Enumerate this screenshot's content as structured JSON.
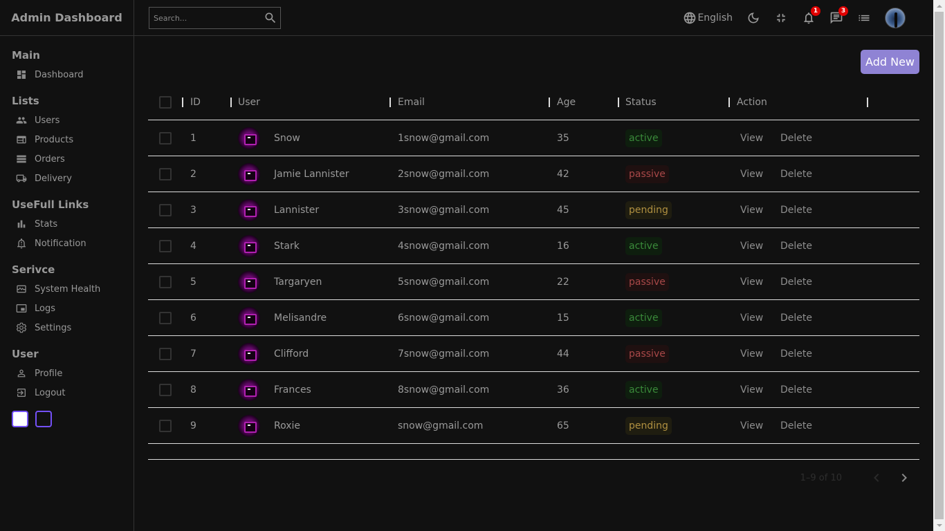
{
  "brand": {
    "title": "Admin Dashboard"
  },
  "search": {
    "placeholder": "Search...",
    "icon": "search-icon"
  },
  "topbar": {
    "language": "English",
    "notifications_count": "1",
    "messages_count": "3"
  },
  "sidebar": {
    "sections": [
      {
        "title": "Main",
        "items": [
          {
            "label": "Dashboard",
            "icon": "dashboard-icon"
          }
        ]
      },
      {
        "title": "Lists",
        "items": [
          {
            "label": "Users",
            "icon": "users-icon"
          },
          {
            "label": "Products",
            "icon": "products-icon"
          },
          {
            "label": "Orders",
            "icon": "orders-icon"
          },
          {
            "label": "Delivery",
            "icon": "truck-icon"
          }
        ]
      },
      {
        "title": "UseFull Links",
        "items": [
          {
            "label": "Stats",
            "icon": "stats-icon"
          },
          {
            "label": "Notification",
            "icon": "bell-icon"
          }
        ]
      },
      {
        "title": "Serivce",
        "items": [
          {
            "label": "System Health",
            "icon": "system-health-icon"
          },
          {
            "label": "Logs",
            "icon": "logs-icon"
          },
          {
            "label": "Settings",
            "icon": "gear-icon"
          }
        ]
      },
      {
        "title": "User",
        "items": [
          {
            "label": "Profile",
            "icon": "profile-icon"
          },
          {
            "label": "Logout",
            "icon": "logout-icon"
          }
        ]
      }
    ]
  },
  "main": {
    "add_new_label": "Add New",
    "columns": {
      "id": "ID",
      "user": "User",
      "email": "Email",
      "age": "Age",
      "status": "Status",
      "action": "Action"
    },
    "view_label": "View",
    "delete_label": "Delete",
    "rows": [
      {
        "id": "1",
        "user": "Snow",
        "email": "1snow@gmail.com",
        "age": "35",
        "status": "active"
      },
      {
        "id": "2",
        "user": "Jamie Lannister",
        "email": "2snow@gmail.com",
        "age": "42",
        "status": "passive"
      },
      {
        "id": "3",
        "user": "Lannister",
        "email": "3snow@gmail.com",
        "age": "45",
        "status": "pending"
      },
      {
        "id": "4",
        "user": "Stark",
        "email": "4snow@gmail.com",
        "age": "16",
        "status": "active"
      },
      {
        "id": "5",
        "user": "Targaryen",
        "email": "5snow@gmail.com",
        "age": "22",
        "status": "passive"
      },
      {
        "id": "6",
        "user": "Melisandre",
        "email": "6snow@gmail.com",
        "age": "15",
        "status": "active"
      },
      {
        "id": "7",
        "user": "Clifford",
        "email": "7snow@gmail.com",
        "age": "44",
        "status": "passive"
      },
      {
        "id": "8",
        "user": "Frances",
        "email": "8snow@gmail.com",
        "age": "36",
        "status": "active"
      },
      {
        "id": "9",
        "user": "Roxie",
        "email": "snow@gmail.com",
        "age": "65",
        "status": "pending"
      }
    ],
    "pagination": "1–9 of 10"
  },
  "colors": {
    "background": "#111111",
    "accent": "#7451f8",
    "add_button": "#8f83d4",
    "badge": "#e00000"
  }
}
